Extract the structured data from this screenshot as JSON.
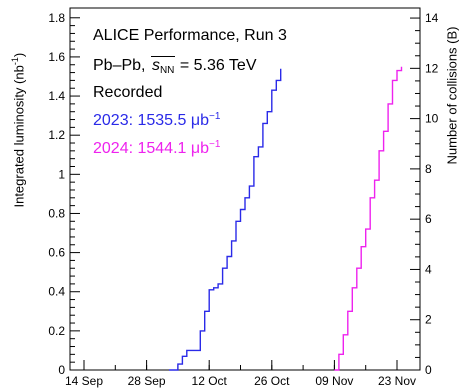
{
  "chart_data": {
    "type": "line",
    "title_lines": [
      "ALICE Performance, Run 3"
    ],
    "system": {
      "prefix": "Pb–Pb, ",
      "sqrt": "s",
      "sub": "NN",
      "suffix": " = 5.36 TeV"
    },
    "recorded_label": "Recorded",
    "ylabel": {
      "text": "Integrated luminosity (nb",
      "sup": "-1",
      "close": ")"
    },
    "y2label": "Number of collisions (B)",
    "ylim": [
      0,
      1.85
    ],
    "y2lim": [
      0,
      14.4
    ],
    "yticks": [
      "0",
      "0.2",
      "0.4",
      "0.6",
      "0.8",
      "1",
      "1.2",
      "1.4",
      "1.6",
      "1.8"
    ],
    "y2ticks": [
      "0",
      "2",
      "4",
      "6",
      "8",
      "10",
      "12",
      "14"
    ],
    "xticks": [
      "14 Sep",
      "28 Sep",
      "12 Oct",
      "26 Oct",
      "09 Nov",
      "23 Nov"
    ],
    "series": [
      {
        "label_main": "2023: 1535.5 μb",
        "label_sup": "−1",
        "color": "#2a2ae8",
        "points": [
          [
            "03 Oct",
            0.0
          ],
          [
            "05 Oct",
            0.0
          ],
          [
            "05 Oct",
            0.03
          ],
          [
            "06 Oct",
            0.03
          ],
          [
            "06 Oct",
            0.07
          ],
          [
            "07 Oct",
            0.07
          ],
          [
            "07 Oct",
            0.1
          ],
          [
            "09 Oct",
            0.1
          ],
          [
            "10 Oct",
            0.12
          ],
          [
            "10 Oct",
            0.2
          ],
          [
            "11 Oct",
            0.25
          ],
          [
            "11 Oct",
            0.3
          ],
          [
            "12 Oct",
            0.35
          ],
          [
            "12 Oct",
            0.41
          ],
          [
            "13 Oct",
            0.42
          ],
          [
            "14 Oct",
            0.44
          ],
          [
            "15 Oct",
            0.47
          ],
          [
            "15 Oct",
            0.52
          ],
          [
            "16 Oct",
            0.58
          ],
          [
            "17 Oct",
            0.6
          ],
          [
            "17 Oct",
            0.66
          ],
          [
            "18 Oct",
            0.72
          ],
          [
            "18 Oct",
            0.76
          ],
          [
            "19 Oct",
            0.82
          ],
          [
            "20 Oct",
            0.88
          ],
          [
            "21 Oct",
            0.94
          ],
          [
            "22 Oct",
            1.02
          ],
          [
            "22 Oct",
            1.09
          ],
          [
            "23 Oct",
            1.14
          ],
          [
            "24 Oct",
            1.21
          ],
          [
            "24 Oct",
            1.26
          ],
          [
            "25 Oct",
            1.32
          ],
          [
            "26 Oct",
            1.39
          ],
          [
            "26 Oct",
            1.43
          ],
          [
            "27 Oct",
            1.48
          ],
          [
            "28 Oct",
            1.54
          ]
        ]
      },
      {
        "label_main": "2024: 1544.1 μb",
        "label_sup": "−1",
        "color": "#ee22ee",
        "points": [
          [
            "09 Nov",
            0.0
          ],
          [
            "10 Nov",
            0.08
          ],
          [
            "11 Nov",
            0.18
          ],
          [
            "12 Nov",
            0.3
          ],
          [
            "13 Nov",
            0.42
          ],
          [
            "14 Nov",
            0.52
          ],
          [
            "15 Nov",
            0.63
          ],
          [
            "16 Nov",
            0.72
          ],
          [
            "17 Nov",
            0.78
          ],
          [
            "17 Nov",
            0.88
          ],
          [
            "18 Nov",
            0.97
          ],
          [
            "19 Nov",
            1.06
          ],
          [
            "19 Nov",
            1.12
          ],
          [
            "20 Nov",
            1.22
          ],
          [
            "21 Nov",
            1.3
          ],
          [
            "21 Nov",
            1.36
          ],
          [
            "22 Nov",
            1.42
          ],
          [
            "22 Nov",
            1.48
          ],
          [
            "23 Nov",
            1.53
          ],
          [
            "24 Nov",
            1.55
          ]
        ]
      }
    ]
  }
}
